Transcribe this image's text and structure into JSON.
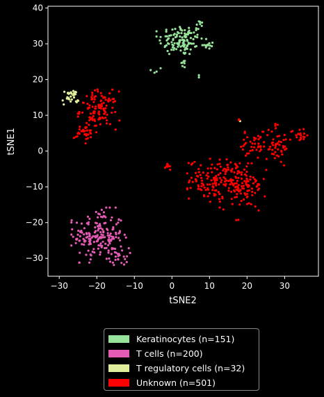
{
  "chart_data": {
    "type": "scatter",
    "xlabel": "tSNE2",
    "ylabel": "tSNE1",
    "xlim": [
      -33,
      39
    ],
    "ylim": [
      -35,
      40.5
    ],
    "xticks": [
      -30,
      -20,
      -10,
      0,
      10,
      20,
      30
    ],
    "yticks": [
      -30,
      -20,
      -10,
      0,
      10,
      20,
      30,
      40
    ],
    "grid": false,
    "legend_position": "below",
    "series": [
      {
        "name": "Keratinocytes (n=151)",
        "color": "#98e39c",
        "count": 151,
        "clusters": [
          {
            "cx": 2.5,
            "cy": 31,
            "sx": 3.0,
            "sy": 2.2,
            "n": 120
          },
          {
            "cx": 7.5,
            "cy": 35.5,
            "sx": 0.6,
            "sy": 1.0,
            "n": 6
          },
          {
            "cx": 9.5,
            "cy": 29.5,
            "sx": 0.9,
            "sy": 0.6,
            "n": 12
          },
          {
            "cx": 3,
            "cy": 24.5,
            "sx": 0.5,
            "sy": 0.6,
            "n": 7
          },
          {
            "cx": -3.5,
            "cy": 22.5,
            "sx": 1.0,
            "sy": 0.5,
            "n": 4
          },
          {
            "cx": 7,
            "cy": 21,
            "sx": 0.3,
            "sy": 0.3,
            "n": 2
          }
        ]
      },
      {
        "name": "T cells (n=200)",
        "color": "#e35bb3",
        "count": 200,
        "clusters": [
          {
            "cx": -19.5,
            "cy": -23.5,
            "sx": 3.3,
            "sy": 3.5,
            "n": 175
          },
          {
            "cx": -14,
            "cy": -29.5,
            "sx": 1.3,
            "sy": 1.2,
            "n": 25
          }
        ]
      },
      {
        "name": "T regulatory cells (n=32)",
        "color": "#e0ef9b",
        "count": 32,
        "clusters": [
          {
            "cx": -27,
            "cy": 15,
            "sx": 1.1,
            "sy": 1.1,
            "n": 30
          },
          {
            "cx": 18,
            "cy": 8.7,
            "sx": 0.15,
            "sy": 0.15,
            "n": 2
          }
        ]
      },
      {
        "name": "Unknown (n=501)",
        "color": "#ff0000",
        "count": 501,
        "clusters": [
          {
            "cx": -19.5,
            "cy": 11.5,
            "sx": 2.5,
            "sy": 2.6,
            "n": 110
          },
          {
            "cx": -23,
            "cy": 5,
            "sx": 1.5,
            "sy": 1.3,
            "n": 30
          },
          {
            "cx": 12,
            "cy": -8,
            "sx": 3.6,
            "sy": 2.8,
            "n": 150
          },
          {
            "cx": 19,
            "cy": -10,
            "sx": 3.0,
            "sy": 3.0,
            "n": 90
          },
          {
            "cx": 22,
            "cy": 1,
            "sx": 2.5,
            "sy": 2.0,
            "n": 45
          },
          {
            "cx": 28,
            "cy": 1.5,
            "sx": 2.0,
            "sy": 2.5,
            "n": 40
          },
          {
            "cx": 34,
            "cy": 4.5,
            "sx": 1.2,
            "sy": 0.9,
            "n": 18
          },
          {
            "cx": 27.5,
            "cy": 7,
            "sx": 0.3,
            "sy": 0.6,
            "n": 5
          },
          {
            "cx": -1,
            "cy": -4,
            "sx": 0.4,
            "sy": 0.6,
            "n": 8
          },
          {
            "cx": 18,
            "cy": 8.7,
            "sx": 0.15,
            "sy": 0.15,
            "n": 3
          },
          {
            "cx": 17.5,
            "cy": -19.3,
            "sx": 0.2,
            "sy": 0.2,
            "n": 2
          }
        ]
      }
    ]
  }
}
